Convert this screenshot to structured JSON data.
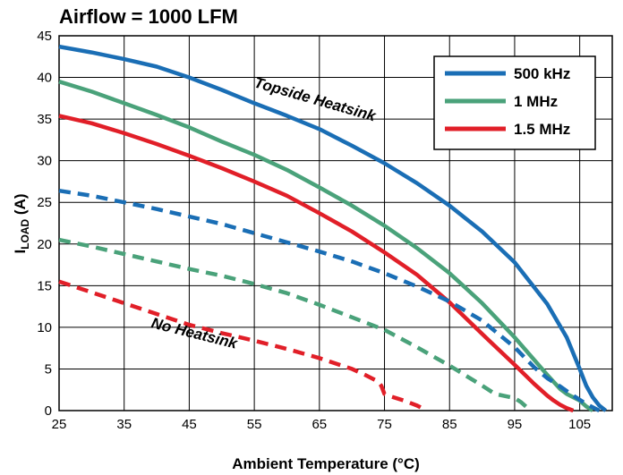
{
  "chart_data": {
    "type": "line",
    "title": "Airflow = 1000 LFM",
    "xlabel": "Ambient Temperature (°C)",
    "ylabel_main": "I",
    "ylabel_sub": "LOAD",
    "ylabel_unit": " (A)",
    "xlim": [
      25,
      110
    ],
    "ylim": [
      0,
      45
    ],
    "xticks": [
      25,
      35,
      45,
      55,
      65,
      75,
      85,
      95,
      105
    ],
    "yticks": [
      0,
      5,
      10,
      15,
      20,
      25,
      30,
      35,
      40,
      45
    ],
    "grid": true,
    "legend_position": "top-right",
    "legend": [
      {
        "label": "500 kHz",
        "color": "#1a6eb5"
      },
      {
        "label": "1 MHz",
        "color": "#4aa27a"
      },
      {
        "label": "1.5 MHz",
        "color": "#e11f28"
      }
    ],
    "annotations": {
      "topside": "Topside Heatsink",
      "noheatsink": "No Heatsink"
    },
    "series": [
      {
        "name": "500 kHz",
        "group": "Topside Heatsink",
        "style": "solid",
        "color": "#1a6eb5",
        "x": [
          25,
          30,
          35,
          40,
          45,
          50,
          55,
          60,
          65,
          70,
          75,
          80,
          85,
          90,
          95,
          100,
          103,
          105,
          106,
          107,
          108,
          109
        ],
        "y": [
          43.7,
          43.0,
          42.2,
          41.3,
          40.0,
          38.5,
          36.9,
          35.4,
          33.8,
          31.8,
          29.7,
          27.3,
          24.6,
          21.5,
          17.8,
          12.8,
          8.8,
          5.0,
          3.0,
          1.6,
          0.6,
          0
        ]
      },
      {
        "name": "1 MHz",
        "group": "Topside Heatsink",
        "style": "solid",
        "color": "#4aa27a",
        "x": [
          25,
          30,
          35,
          40,
          45,
          50,
          55,
          60,
          65,
          70,
          75,
          80,
          85,
          90,
          95,
          100,
          102,
          103,
          105,
          106,
          107
        ],
        "y": [
          39.5,
          38.3,
          36.9,
          35.5,
          34.0,
          32.3,
          30.7,
          28.9,
          26.8,
          24.6,
          22.2,
          19.5,
          16.5,
          12.9,
          8.8,
          4.3,
          2.6,
          2.0,
          1.2,
          0.5,
          0
        ]
      },
      {
        "name": "1.5 MHz",
        "group": "Topside Heatsink",
        "style": "solid",
        "color": "#e11f28",
        "x": [
          25,
          30,
          35,
          40,
          45,
          50,
          55,
          60,
          65,
          70,
          75,
          80,
          85,
          90,
          95,
          98,
          100,
          101,
          102,
          103,
          104
        ],
        "y": [
          35.4,
          34.5,
          33.3,
          32.0,
          30.6,
          29.1,
          27.5,
          25.8,
          23.7,
          21.5,
          19.0,
          16.3,
          13.0,
          9.2,
          5.5,
          3.2,
          1.8,
          1.2,
          0.7,
          0.3,
          0
        ]
      },
      {
        "name": "500 kHz",
        "group": "No Heatsink",
        "style": "dashed",
        "color": "#1a6eb5",
        "x": [
          25,
          30,
          35,
          40,
          45,
          50,
          55,
          60,
          65,
          70,
          75,
          80,
          85,
          90,
          95,
          98,
          100,
          102,
          104,
          106,
          108
        ],
        "y": [
          26.4,
          25.8,
          25.0,
          24.2,
          23.3,
          22.4,
          21.3,
          20.2,
          19.1,
          17.9,
          16.5,
          14.9,
          13.1,
          10.8,
          7.6,
          5.2,
          3.9,
          2.9,
          1.8,
          0.8,
          0
        ]
      },
      {
        "name": "1 MHz",
        "group": "No Heatsink",
        "style": "dashed",
        "color": "#4aa27a",
        "x": [
          25,
          30,
          35,
          40,
          45,
          50,
          55,
          60,
          65,
          70,
          75,
          80,
          85,
          90,
          92,
          95,
          96,
          97,
          97.5
        ],
        "y": [
          20.5,
          19.7,
          18.8,
          17.9,
          17.0,
          16.2,
          15.2,
          14.1,
          12.7,
          11.2,
          9.7,
          7.6,
          5.4,
          3.0,
          2.0,
          1.5,
          1.0,
          0.3,
          0
        ]
      },
      {
        "name": "1.5 MHz",
        "group": "No Heatsink",
        "style": "dashed",
        "color": "#e11f28",
        "x": [
          25,
          30,
          35,
          40,
          45,
          50,
          55,
          60,
          65,
          70,
          72,
          74,
          74.5,
          75,
          76,
          78,
          80,
          81.5
        ],
        "y": [
          15.5,
          14.2,
          12.9,
          11.6,
          10.3,
          9.3,
          8.4,
          7.4,
          6.3,
          5.0,
          4.3,
          3.5,
          3.0,
          2.0,
          1.7,
          1.2,
          0.6,
          0
        ]
      }
    ]
  }
}
